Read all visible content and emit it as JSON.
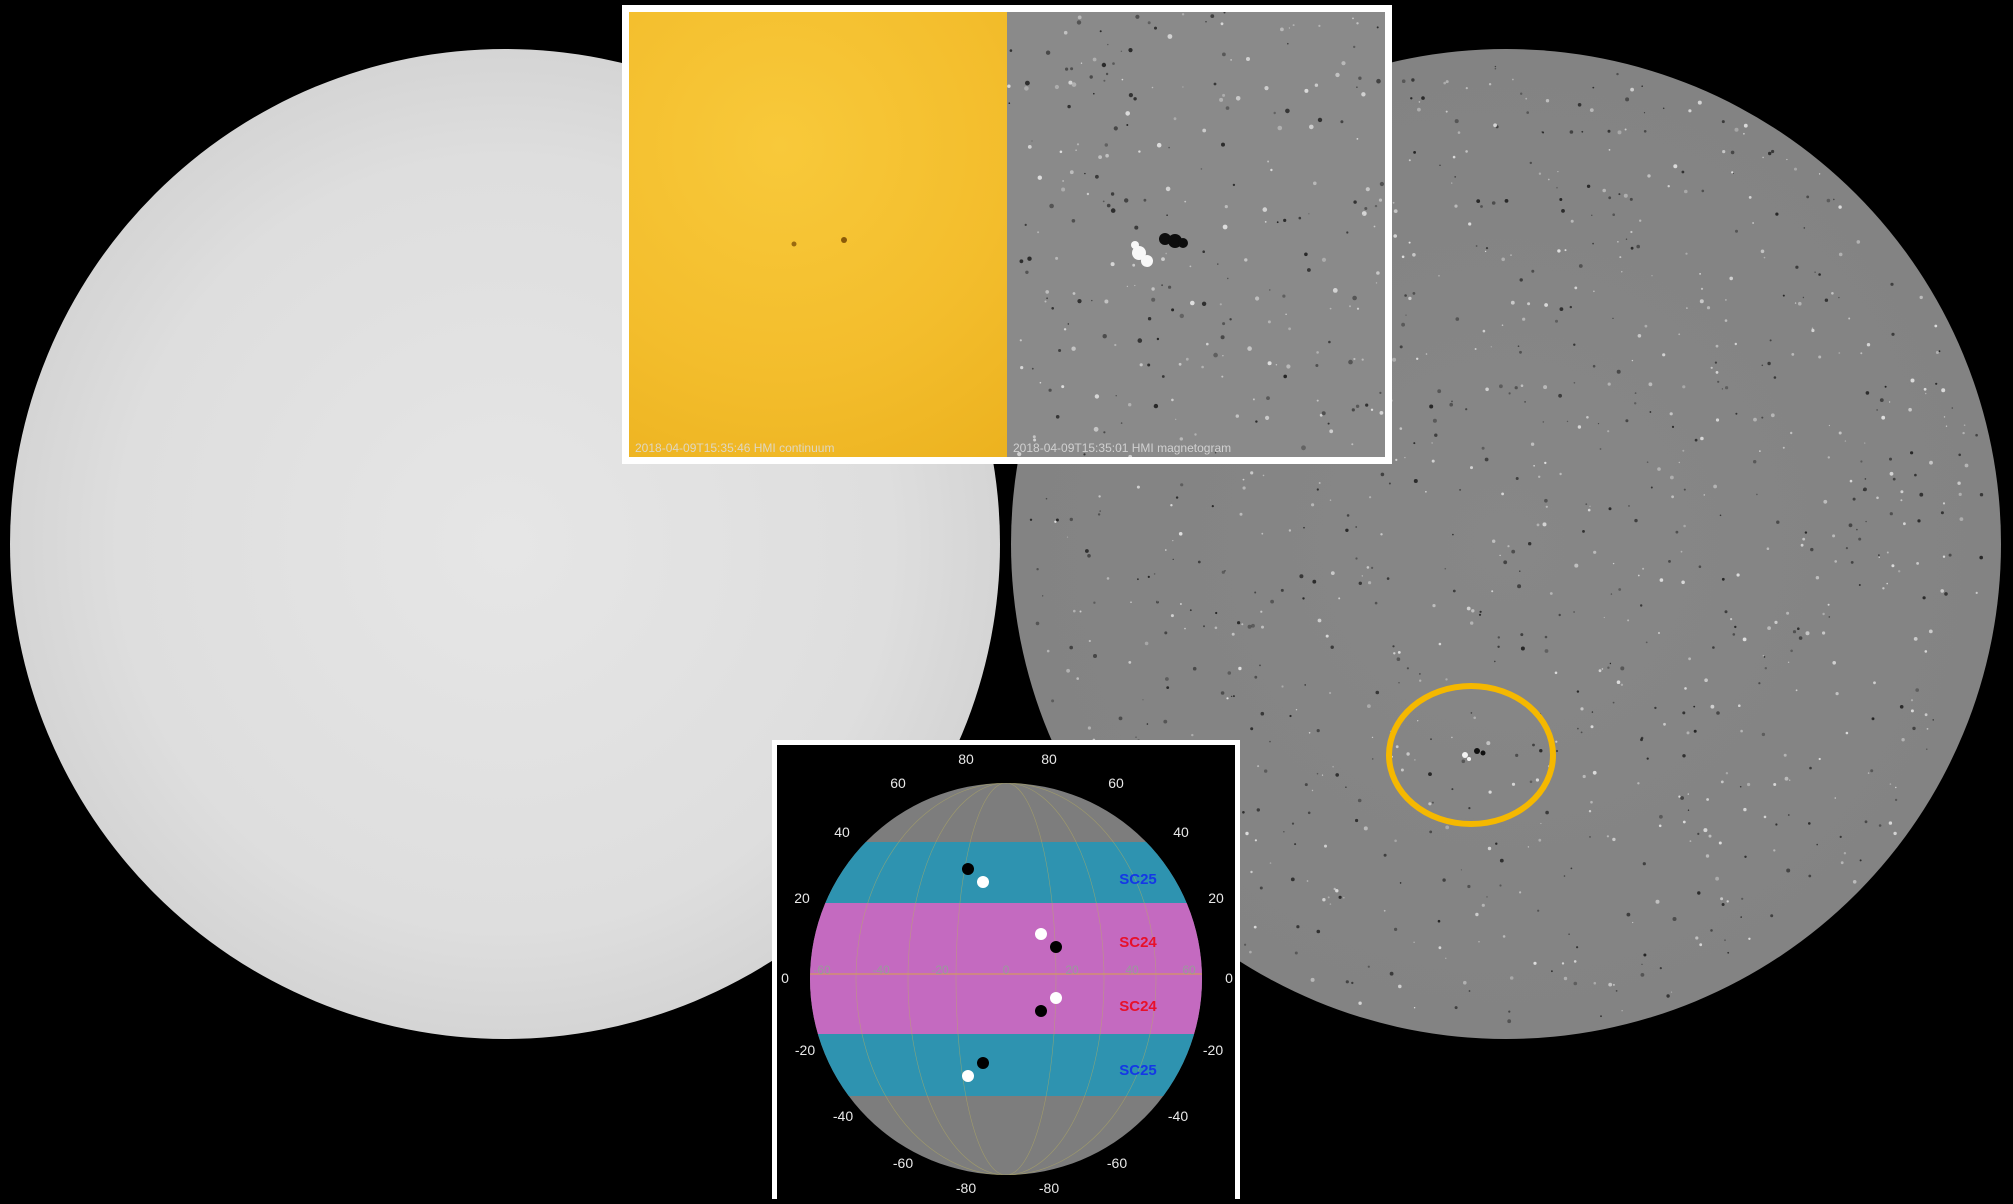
{
  "top_inset": {
    "continuum_caption": "2018-04-09T15:35:46 HMI continuum",
    "magnetogram_caption": "2018-04-09T15:35:01 HMI magnetogram"
  },
  "latitude_map": {
    "top_labels": [
      "80",
      "80"
    ],
    "upper_left_labels": [
      "60",
      "40",
      "20"
    ],
    "upper_right_labels": [
      "60",
      "40",
      "20"
    ],
    "equator_left": "0",
    "equator_right": "0",
    "lower_left_labels": [
      "-20",
      "-40",
      "-60"
    ],
    "lower_right_labels": [
      "-20",
      "-40",
      "-60"
    ],
    "bottom_labels": [
      "-80",
      "-80"
    ],
    "longitude_labels": [
      "-60",
      "-40",
      "-20",
      "0",
      "20",
      "40",
      "60"
    ],
    "bands": [
      {
        "label": "SC25",
        "label_color": "#1438e6",
        "fill": "#2e93b0"
      },
      {
        "label": "SC24",
        "label_color": "#e8102a",
        "fill": "#c46ac0"
      },
      {
        "label": "SC24",
        "label_color": "#e8102a",
        "fill": "#c46ac0"
      },
      {
        "label": "SC25",
        "label_color": "#1438e6",
        "fill": "#2e93b0"
      }
    ]
  },
  "colors": {
    "region_ring": "#f5b800",
    "continuum": "#f3bd2c"
  }
}
